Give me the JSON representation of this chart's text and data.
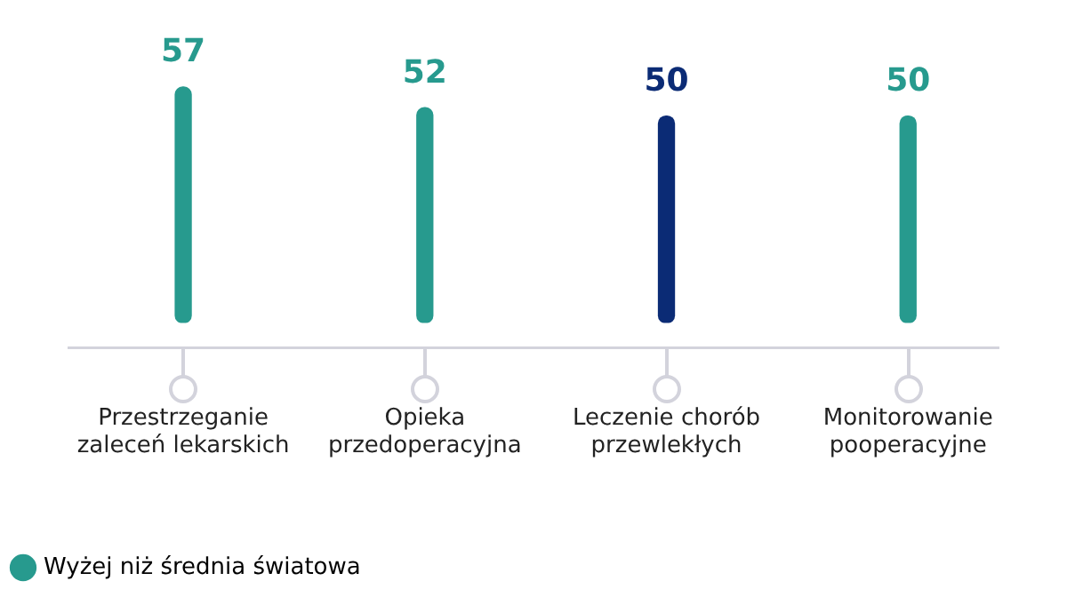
{
  "chart_data": {
    "type": "bar",
    "categories": [
      "Przestrzeganie zaleceń lekarskich",
      "Opieka przedoperacyjna",
      "Leczenie chorób przewlekłych",
      "Monitorowanie pooperacyjne"
    ],
    "series": [
      {
        "name": "Wyżej niż średnia światowa",
        "color": "#279a8e",
        "colors": [
          "#279a8e",
          "#279a8e",
          "#0b2b75",
          "#279a8e"
        ],
        "values": [
          57,
          52,
          50,
          50
        ]
      }
    ],
    "data_labels": true,
    "legend": "bottom left",
    "grid": false
  }
}
